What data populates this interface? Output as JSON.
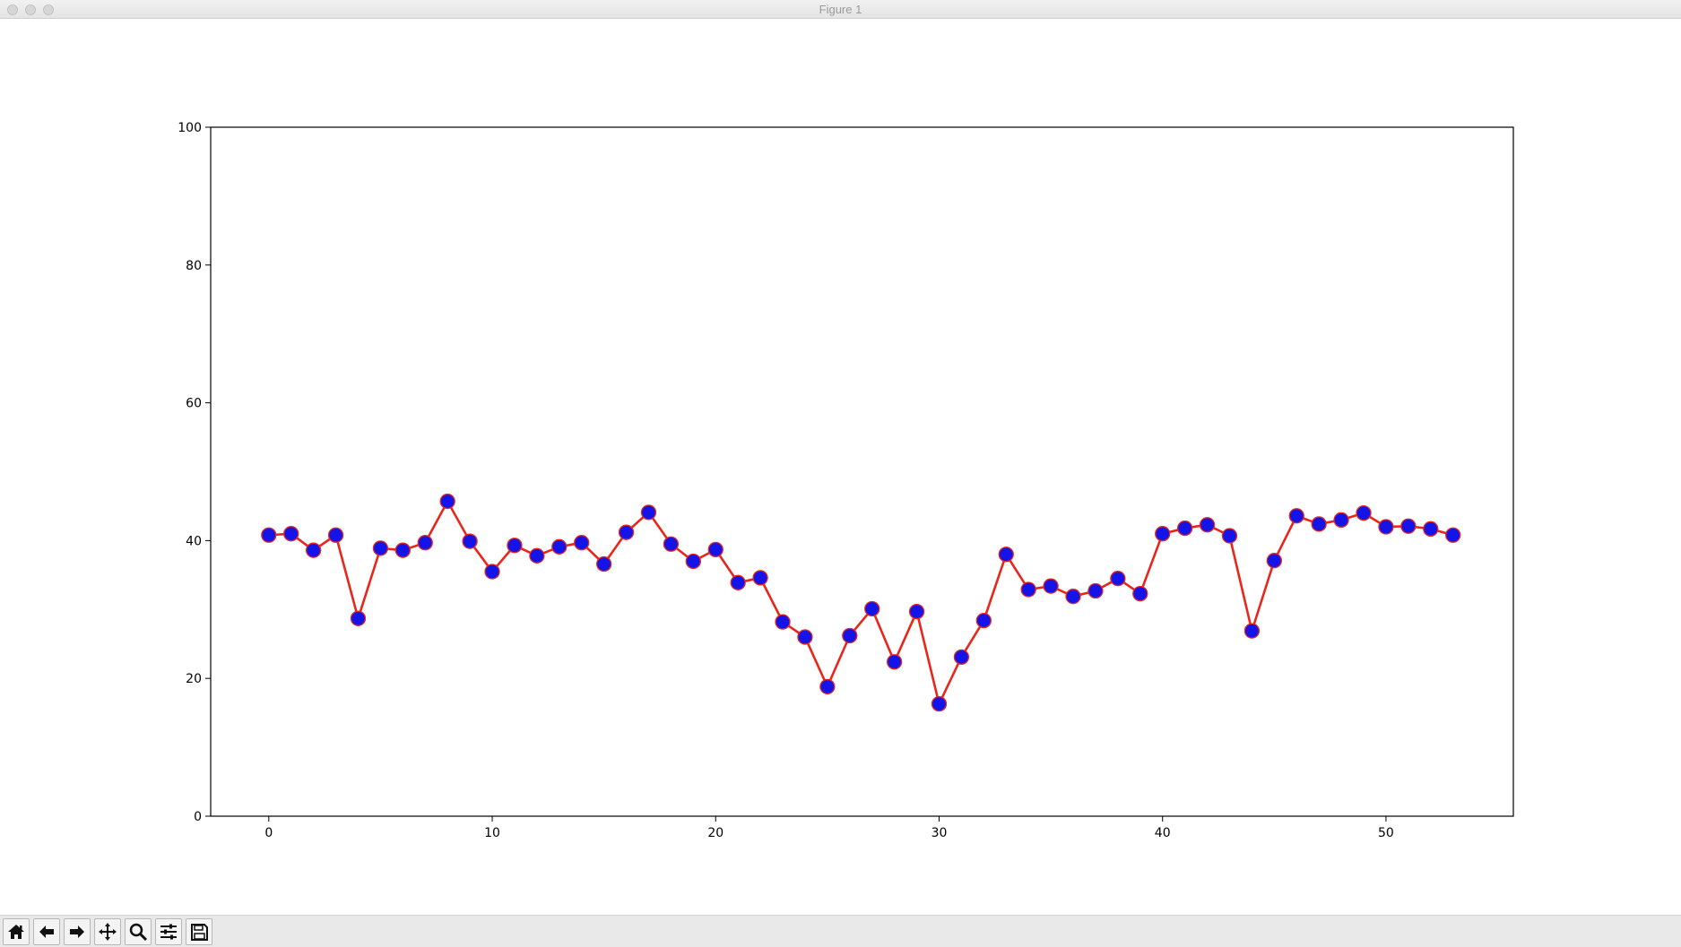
{
  "window": {
    "title": "Figure 1",
    "buttons": [
      "close",
      "minimize",
      "zoom"
    ]
  },
  "toolbar": {
    "tools": [
      {
        "name": "home-icon"
      },
      {
        "name": "back-icon"
      },
      {
        "name": "forward-icon"
      },
      {
        "name": "pan-icon"
      },
      {
        "name": "zoom-icon"
      },
      {
        "name": "configure-subplots-icon"
      },
      {
        "name": "save-icon"
      }
    ]
  },
  "colors": {
    "line": "#e8261c",
    "marker_face": "#1414e8",
    "marker_edge": "#e8261c",
    "axes": "#000000"
  },
  "chart_data": {
    "type": "line",
    "title": "",
    "xlabel": "",
    "ylabel": "",
    "xlim": [
      -2.6,
      55.7
    ],
    "ylim": [
      0,
      100
    ],
    "xticks": [
      0,
      10,
      20,
      30,
      40,
      50
    ],
    "yticks": [
      0,
      20,
      40,
      60,
      80,
      100
    ],
    "grid": false,
    "series": [
      {
        "x": [
          0,
          1,
          2,
          3,
          4,
          5,
          6,
          7,
          8,
          9,
          10,
          11,
          12,
          13,
          14,
          15,
          16,
          17,
          18,
          19,
          20,
          21,
          22,
          23,
          24,
          25,
          26,
          27,
          28,
          29,
          30,
          31,
          32,
          33,
          34,
          35,
          36,
          37,
          38,
          39,
          40,
          41,
          42,
          43,
          44,
          45,
          46,
          47,
          48,
          49,
          50,
          51,
          52,
          53
        ],
        "values": [
          40.8,
          41.0,
          38.6,
          40.8,
          28.7,
          38.9,
          38.6,
          39.7,
          45.7,
          39.9,
          35.5,
          39.3,
          37.8,
          39.1,
          39.7,
          36.6,
          41.2,
          44.1,
          39.5,
          37.0,
          38.7,
          33.9,
          34.6,
          28.2,
          26.0,
          18.8,
          26.2,
          30.1,
          22.4,
          29.7,
          16.3,
          23.1,
          28.4,
          38.0,
          32.9,
          33.4,
          31.9,
          32.7,
          34.5,
          32.3,
          41.0,
          41.8,
          42.3,
          40.7,
          26.9,
          37.1,
          43.6,
          42.4,
          43.0,
          44.0,
          42.0,
          42.1,
          41.7,
          40.8
        ]
      }
    ]
  }
}
